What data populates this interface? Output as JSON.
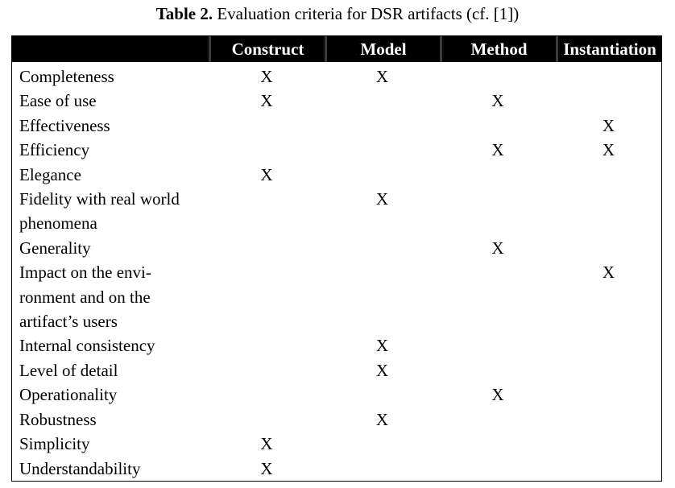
{
  "caption": {
    "label": "Table 2.",
    "text": " Evaluation criteria for DSR artifacts (cf. [1])"
  },
  "table": {
    "headers": [
      "",
      "Construct",
      "Model",
      "Method",
      "Instantiation"
    ],
    "rows": [
      {
        "criterion_lines": [
          "Completeness"
        ],
        "marks": [
          "X",
          "X",
          "",
          ""
        ]
      },
      {
        "criterion_lines": [
          "Ease of use"
        ],
        "marks": [
          "X",
          "",
          "X",
          ""
        ]
      },
      {
        "criterion_lines": [
          "Effectiveness"
        ],
        "marks": [
          "",
          "",
          "",
          "X"
        ]
      },
      {
        "criterion_lines": [
          "Efficiency"
        ],
        "marks": [
          "",
          "",
          "X",
          "X"
        ]
      },
      {
        "criterion_lines": [
          "Elegance"
        ],
        "marks": [
          "X",
          "",
          "",
          ""
        ]
      },
      {
        "criterion_lines": [
          "Fidelity with real world",
          "phenomena"
        ],
        "marks": [
          "",
          "X",
          "",
          ""
        ]
      },
      {
        "criterion_lines": [
          "Generality"
        ],
        "marks": [
          "",
          "",
          "X",
          ""
        ]
      },
      {
        "criterion_lines": [
          "Impact on the envi-",
          "ronment and on the",
          "artifact’s users"
        ],
        "marks": [
          "",
          "",
          "",
          "X"
        ]
      },
      {
        "criterion_lines": [
          "Internal consistency"
        ],
        "marks": [
          "",
          "X",
          "",
          ""
        ]
      },
      {
        "criterion_lines": [
          "Level of detail"
        ],
        "marks": [
          "",
          "X",
          "",
          ""
        ]
      },
      {
        "criterion_lines": [
          "Operationality"
        ],
        "marks": [
          "",
          "",
          "X",
          ""
        ]
      },
      {
        "criterion_lines": [
          "Robustness"
        ],
        "marks": [
          "",
          "X",
          "",
          ""
        ]
      },
      {
        "criterion_lines": [
          "Simplicity"
        ],
        "marks": [
          "X",
          "",
          "",
          ""
        ]
      },
      {
        "criterion_lines": [
          "Understandability"
        ],
        "marks": [
          "X",
          "",
          "",
          ""
        ]
      }
    ]
  }
}
